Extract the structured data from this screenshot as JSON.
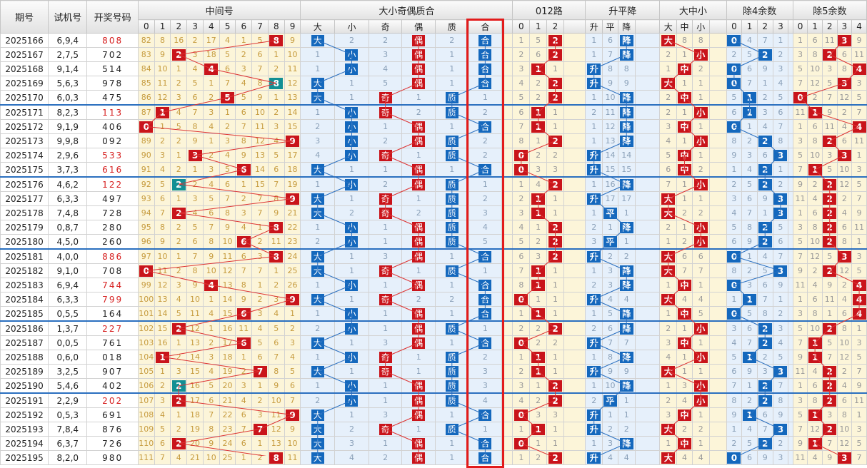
{
  "headers": {
    "issue": "期号",
    "trial": "试机号",
    "result": "开奖号码",
    "mid": "中间号",
    "bsoe": "大小奇偶质合",
    "road012": "012路",
    "upflat": "升平降",
    "bigmid": "大中小",
    "mod4": "除4余数",
    "mod5": "除5余数"
  },
  "subheaders": {
    "mid": [
      "0",
      "1",
      "2",
      "3",
      "4",
      "5",
      "6",
      "7",
      "8",
      "9"
    ],
    "bsoe": [
      "大",
      "小",
      "奇",
      "偶",
      "质",
      "合"
    ],
    "road012": [
      "0",
      "1",
      "2"
    ],
    "upflat": [
      "升",
      "平",
      "降"
    ],
    "bigmid": [
      "大",
      "中",
      "小"
    ],
    "mod4": [
      "0",
      "1",
      "2",
      "3"
    ],
    "mod5": [
      "0",
      "1",
      "2",
      "3",
      "4"
    ]
  },
  "colors": {
    "red": "#c9141b",
    "blue": "#1468bd",
    "teal": "#128f94",
    "green": "#5e9b2d",
    "highlight_box": "#e21b1b"
  },
  "rows": [
    {
      "issue": "2025166",
      "trial": "6,9,4",
      "result": "808",
      "mid": 8,
      "miss": [
        "82",
        "8",
        "16",
        "2",
        "17",
        "4",
        "1",
        "5",
        "",
        ""
      ],
      "after": "9",
      "bs": "大",
      "oe": "偶",
      "pc": "合",
      "r012": 2,
      "ud": "降",
      "bm": "大",
      "m4": 0,
      "m5": 3
    },
    {
      "issue": "2025167",
      "trial": "2,7,5",
      "result": "702",
      "mid": 2,
      "miss": [],
      "bs": "小",
      "oe": "偶",
      "pc": "合",
      "r012": 2,
      "ud": "降",
      "bm": "小",
      "m4": 2,
      "m5": 2
    },
    {
      "issue": "2025168",
      "trial": "9,1,4",
      "result": "514",
      "mid": 4,
      "miss": [],
      "bs": "小",
      "oe": "偶",
      "pc": "合",
      "r012": 1,
      "ud": "升",
      "bm": "中",
      "m4": 0,
      "m5": 4
    },
    {
      "issue": "2025169",
      "trial": "5,6,3",
      "result": "978",
      "mid": 8,
      "miss": [],
      "bs": "大",
      "oe": "偶",
      "pc": "合",
      "r012": 2,
      "ud": "升",
      "bm": "大",
      "m4": 0,
      "m5": 3
    },
    {
      "issue": "2025170",
      "trial": "6,0,3",
      "result": "475",
      "mid": 5,
      "miss": [],
      "bs": "大",
      "oe": "奇",
      "pc": "质",
      "r012": 2,
      "ud": "降",
      "bm": "中",
      "m4": 1,
      "m5": 0
    },
    {
      "issue": "2025171",
      "trial": "8,2,3",
      "result": "113",
      "mid": 1,
      "miss": [],
      "bs": "小",
      "oe": "奇",
      "pc": "质",
      "r012": 1,
      "ud": "降",
      "bm": "小",
      "m4": 1,
      "m5": 1
    },
    {
      "issue": "2025172",
      "trial": "9,1,9",
      "result": "406",
      "mid": 0,
      "miss": [],
      "bs": "小",
      "oe": "偶",
      "pc": "合",
      "r012": 1,
      "ud": "降",
      "bm": "中",
      "m4": 0,
      "m5": 4
    },
    {
      "issue": "2025173",
      "trial": "9,9,8",
      "result": "092",
      "mid": 9,
      "miss": [],
      "bs": "小",
      "oe": "偶",
      "pc": "质",
      "r012": 2,
      "ud": "降",
      "bm": "小",
      "m4": 2,
      "m5": 2
    },
    {
      "issue": "2025174",
      "trial": "2,9,6",
      "result": "533",
      "mid": 3,
      "miss": [],
      "bs": "小",
      "oe": "奇",
      "pc": "质",
      "r012": 0,
      "ud": "升",
      "bm": "中",
      "m4": 3,
      "m5": 3
    },
    {
      "issue": "2025175",
      "trial": "3,7,3",
      "result": "616",
      "mid": 6,
      "miss": [],
      "bs": "大",
      "oe": "偶",
      "pc": "合",
      "r012": 0,
      "ud": "升",
      "bm": "中",
      "m4": 2,
      "m5": 1
    },
    {
      "issue": "2025176",
      "trial": "4,6,2",
      "result": "122",
      "mid": 2,
      "miss": [],
      "bs": "小",
      "oe": "偶",
      "pc": "质",
      "r012": 2,
      "ud": "降",
      "bm": "小",
      "m4": 2,
      "m5": 2
    },
    {
      "issue": "2025177",
      "trial": "6,3,3",
      "result": "497",
      "mid": 9,
      "miss": [],
      "bs": "大",
      "oe": "奇",
      "pc": "质",
      "r012": 1,
      "ud": "升",
      "bm": "大",
      "m4": 3,
      "m5": 2
    },
    {
      "issue": "2025178",
      "trial": "7,4,8",
      "result": "728",
      "mid": 2,
      "miss": [],
      "bs": "大",
      "oe": "奇",
      "pc": "质",
      "r012": 1,
      "ud": "平",
      "bm": "大",
      "m4": 3,
      "m5": 2
    },
    {
      "issue": "2025179",
      "trial": "0,8,7",
      "result": "280",
      "mid": 8,
      "miss": [],
      "bs": "小",
      "oe": "偶",
      "pc": "质",
      "r012": 2,
      "ud": "降",
      "bm": "小",
      "m4": 2,
      "m5": 2
    },
    {
      "issue": "2025180",
      "trial": "4,5,0",
      "result": "260",
      "mid": 6,
      "miss": [],
      "bs": "小",
      "oe": "偶",
      "pc": "质",
      "r012": 2,
      "ud": "平",
      "bm": "小",
      "m4": 2,
      "m5": 2
    },
    {
      "issue": "2025181",
      "trial": "4,0,0",
      "result": "886",
      "mid": 8,
      "miss": [],
      "bs": "大",
      "oe": "偶",
      "pc": "合",
      "r012": 2,
      "ud": "升",
      "bm": "大",
      "m4": 0,
      "m5": 3
    },
    {
      "issue": "2025182",
      "trial": "9,1,0",
      "result": "708",
      "mid": 0,
      "miss": [],
      "bs": "大",
      "oe": "奇",
      "pc": "质",
      "r012": 1,
      "ud": "降",
      "bm": "大",
      "m4": 3,
      "m5": 2
    },
    {
      "issue": "2025183",
      "trial": "6,9,4",
      "result": "744",
      "mid": 4,
      "miss": [],
      "bs": "小",
      "oe": "偶",
      "pc": "合",
      "r012": 1,
      "ud": "降",
      "bm": "中",
      "m4": 0,
      "m5": 4
    },
    {
      "issue": "2025184",
      "trial": "6,3,3",
      "result": "799",
      "mid": 9,
      "miss": [],
      "bs": "大",
      "oe": "奇",
      "pc": "合",
      "r012": 0,
      "ud": "升",
      "bm": "大",
      "m4": 1,
      "m5": 4
    },
    {
      "issue": "2025185",
      "trial": "0,5,5",
      "result": "164",
      "mid": 6,
      "miss": [],
      "bs": "小",
      "oe": "偶",
      "pc": "合",
      "r012": 1,
      "ud": "降",
      "bm": "中",
      "m4": 0,
      "m5": 4
    },
    {
      "issue": "2025186",
      "trial": "1,3,7",
      "result": "227",
      "mid": 2,
      "miss": [],
      "bs": "小",
      "oe": "偶",
      "pc": "质",
      "r012": 2,
      "ud": "降",
      "bm": "小",
      "m4": 2,
      "m5": 2
    },
    {
      "issue": "2025187",
      "trial": "0,0,5",
      "result": "761",
      "mid": 6,
      "miss": [],
      "bs": "大",
      "oe": "偶",
      "pc": "合",
      "r012": 0,
      "ud": "升",
      "bm": "中",
      "m4": 2,
      "m5": 1
    },
    {
      "issue": "2025188",
      "trial": "0,6,0",
      "result": "018",
      "mid": 1,
      "miss": [],
      "bs": "小",
      "oe": "奇",
      "pc": "质",
      "r012": 1,
      "ud": "降",
      "bm": "小",
      "m4": 1,
      "m5": 1
    },
    {
      "issue": "2025189",
      "trial": "3,2,5",
      "result": "907",
      "mid": 7,
      "miss": [],
      "bs": "大",
      "oe": "奇",
      "pc": "质",
      "r012": 1,
      "ud": "升",
      "bm": "大",
      "m4": 3,
      "m5": 2
    },
    {
      "issue": "2025190",
      "trial": "5,4,6",
      "result": "402",
      "mid": 2,
      "miss": [],
      "bs": "小",
      "oe": "偶",
      "pc": "质",
      "r012": 2,
      "ud": "降",
      "bm": "小",
      "m4": 2,
      "m5": 2
    },
    {
      "issue": "2025191",
      "trial": "2,2,9",
      "result": "202",
      "mid": 2,
      "miss": [],
      "bs": "小",
      "oe": "偶",
      "pc": "质",
      "r012": 2,
      "ud": "平",
      "bm": "小",
      "m4": 2,
      "m5": 2
    },
    {
      "issue": "2025192",
      "trial": "0,5,3",
      "result": "691",
      "mid": 9,
      "miss": [],
      "bs": "大",
      "oe": "偶",
      "pc": "合",
      "r012": 0,
      "ud": "升",
      "bm": "中",
      "m4": 1,
      "m5": 1
    },
    {
      "issue": "2025193",
      "trial": "7,8,4",
      "result": "876",
      "mid": 7,
      "miss": [],
      "bs": "大",
      "oe": "奇",
      "pc": "质",
      "r012": 1,
      "ud": "升",
      "bm": "大",
      "m4": 3,
      "m5": 2
    },
    {
      "issue": "2025194",
      "trial": "6,3,7",
      "result": "726",
      "mid": 2,
      "miss": [],
      "bs": "大",
      "oe": "偶",
      "pc": "合",
      "r012": 0,
      "ud": "降",
      "bm": "中",
      "m4": 2,
      "m5": 1
    },
    {
      "issue": "2025195",
      "trial": "8,2,0",
      "result": "980",
      "mid": 8,
      "miss": [],
      "bs": "大",
      "oe": "偶",
      "pc": "合",
      "r012": 2,
      "ud": "升",
      "bm": "大",
      "m4": 0,
      "m5": 3
    }
  ],
  "grid": [
    [
      "82",
      "8",
      "16",
      "2",
      "17",
      "4",
      "1",
      "5",
      "8",
      "9"
    ],
    [
      "83",
      "9",
      "2",
      "3",
      "18",
      "5",
      "2",
      "6",
      "1",
      "10"
    ],
    [
      "84",
      "10",
      "1",
      "4",
      "4",
      "6",
      "3",
      "7",
      "2",
      "11"
    ],
    [
      "85",
      "11",
      "2",
      "5",
      "1",
      "7",
      "4",
      "8",
      "8",
      "12"
    ],
    [
      "86",
      "12",
      "3",
      "6",
      "2",
      "5",
      "5",
      "9",
      "1",
      "13"
    ],
    [
      "87",
      "1",
      "4",
      "7",
      "3",
      "1",
      "6",
      "10",
      "2",
      "14"
    ],
    [
      "88",
      "1",
      "5",
      "8",
      "4",
      "2",
      "7",
      "11",
      "3",
      "15"
    ],
    [
      "89",
      "2",
      "2",
      "9",
      "1",
      "3",
      "8",
      "12",
      "4",
      "16"
    ],
    [
      "90",
      "3",
      "1",
      "3",
      "2",
      "4",
      "9",
      "13",
      "5",
      "17"
    ],
    [
      "91",
      "4",
      "2",
      "1",
      "3",
      "5",
      "6",
      "14",
      "6",
      "18"
    ],
    [
      "92",
      "5",
      "2",
      "2",
      "4",
      "6",
      "1",
      "15",
      "7",
      "19"
    ],
    [
      "93",
      "6",
      "1",
      "3",
      "5",
      "7",
      "2",
      "7",
      "8",
      "20"
    ],
    [
      "94",
      "7",
      "2",
      "4",
      "6",
      "8",
      "3",
      "7",
      "9",
      "21"
    ],
    [
      "95",
      "8",
      "2",
      "5",
      "7",
      "9",
      "4",
      "1",
      "10",
      "22"
    ],
    [
      "96",
      "9",
      "2",
      "6",
      "8",
      "10",
      "5",
      "2",
      "11",
      "23"
    ],
    [
      "97",
      "10",
      "1",
      "7",
      "9",
      "11",
      "6",
      "3",
      "8",
      "24"
    ],
    [
      "98",
      "11",
      "2",
      "8",
      "10",
      "12",
      "7",
      "7",
      "1",
      "25"
    ],
    [
      "99",
      "12",
      "3",
      "9",
      "4",
      "13",
      "8",
      "1",
      "2",
      "26"
    ],
    [
      "100",
      "13",
      "4",
      "10",
      "1",
      "14",
      "9",
      "2",
      "3",
      "9"
    ],
    [
      "101",
      "14",
      "5",
      "11",
      "4",
      "15",
      "10",
      "3",
      "4",
      "1"
    ],
    [
      "102",
      "15",
      "2",
      "12",
      "1",
      "16",
      "11",
      "4",
      "5",
      "2"
    ],
    [
      "103",
      "16",
      "1",
      "13",
      "2",
      "17",
      "6",
      "5",
      "6",
      "3"
    ],
    [
      "104",
      "1",
      "2",
      "14",
      "3",
      "18",
      "1",
      "6",
      "7",
      "4"
    ],
    [
      "105",
      "1",
      "3",
      "15",
      "4",
      "19",
      "2",
      "7",
      "8",
      "5"
    ],
    [
      "106",
      "2",
      "2",
      "16",
      "5",
      "20",
      "3",
      "1",
      "9",
      "6"
    ],
    [
      "107",
      "3",
      "2",
      "17",
      "6",
      "21",
      "4",
      "2",
      "10",
      "7"
    ],
    [
      "108",
      "4",
      "1",
      "18",
      "7",
      "22",
      "6",
      "3",
      "11",
      "8"
    ],
    [
      "109",
      "5",
      "2",
      "19",
      "8",
      "23",
      "7",
      "7",
      "12",
      "9"
    ],
    [
      "110",
      "6",
      "3",
      "20",
      "9",
      "24",
      "6",
      "1",
      "13",
      "10"
    ],
    [
      "111",
      "7",
      "4",
      "21",
      "10",
      "25",
      "1",
      "2",
      "8",
      "11"
    ]
  ],
  "side": {
    "bs_other": [
      "2",
      "1",
      "1",
      "1",
      "1",
      "1",
      "2",
      "3",
      "4",
      "1",
      "1",
      "1",
      "2",
      "1",
      "2",
      "1",
      "1",
      "1",
      "1",
      "1",
      "2",
      "1",
      "1",
      "1",
      "1",
      "2",
      "1",
      "2",
      "3",
      "4"
    ],
    "oe_other": [
      "2",
      "3",
      "4",
      "5",
      "1",
      "2",
      "1",
      "2",
      "1",
      "1",
      "2",
      "1",
      "2",
      "1",
      "1",
      "3",
      "1",
      "1",
      "2",
      "1",
      "1",
      "3",
      "1",
      "1",
      "1",
      "1",
      "3",
      "1",
      "1",
      "2"
    ],
    "pc_other": [
      "2",
      "1",
      "1",
      "1",
      "1",
      "2",
      "1",
      "2",
      "2",
      "1",
      "1",
      "2",
      "3",
      "4",
      "5",
      "1",
      "1",
      "1",
      "2",
      "1",
      "1",
      "1",
      "2",
      "3",
      "3",
      "4",
      "1",
      "1",
      "1",
      "1"
    ],
    "r012_a": [
      "1",
      "2",
      "3",
      "4",
      "5",
      "6",
      "7",
      "8",
      "0",
      "0",
      "1",
      "2",
      "3",
      "4",
      "5",
      "6",
      "7",
      "8",
      "0",
      "1",
      "2",
      "0",
      "1",
      "2",
      "3",
      "4",
      "0",
      "1",
      "0",
      "1"
    ],
    "r012_b": [
      "5",
      "6",
      "1",
      "2",
      "2",
      "1",
      "1",
      "1",
      "2",
      "3",
      "4",
      "1",
      "1",
      "1",
      "2",
      "3",
      "1",
      "1",
      "1",
      "1",
      "2",
      "2",
      "1",
      "1",
      "1",
      "2",
      "3",
      "1",
      "1",
      "2"
    ],
    "ud_a": [
      "1",
      "1",
      "1",
      "1",
      "1",
      "2",
      "1",
      "1",
      "1",
      "1",
      "1",
      "1",
      "1",
      "2",
      "3",
      "1",
      "1",
      "2",
      "1",
      "1",
      "2",
      "1",
      "1",
      "1",
      "1",
      "2",
      "1",
      "1",
      "1",
      "1"
    ],
    "ud_b": [
      "6",
      "7",
      "8",
      "9",
      "10",
      "11",
      "12",
      "13",
      "14",
      "15",
      "16",
      "17",
      "1",
      "1",
      "1",
      "2",
      "3",
      "3",
      "4",
      "5",
      "6",
      "7",
      "8",
      "9",
      "10",
      "1",
      "1",
      "2",
      "3",
      "4"
    ],
    "bm_a": [
      "1",
      "2",
      "1",
      "1",
      "2",
      "2",
      "3",
      "4",
      "5",
      "6",
      "7",
      "1",
      "1",
      "2",
      "1",
      "1",
      "1",
      "1",
      "1",
      "1",
      "2",
      "3",
      "4",
      "1",
      "1",
      "2",
      "3",
      "1",
      "1",
      "1"
    ],
    "bm_b": [
      "8",
      "1",
      "2",
      "1",
      "1",
      "1",
      "1",
      "1",
      "1",
      "2",
      "1",
      "1",
      "2",
      "1",
      "2",
      "6",
      "7",
      "1",
      "4",
      "5",
      "1",
      "1",
      "1",
      "1",
      "3",
      "4",
      "1",
      "2",
      "1",
      "4"
    ]
  }
}
